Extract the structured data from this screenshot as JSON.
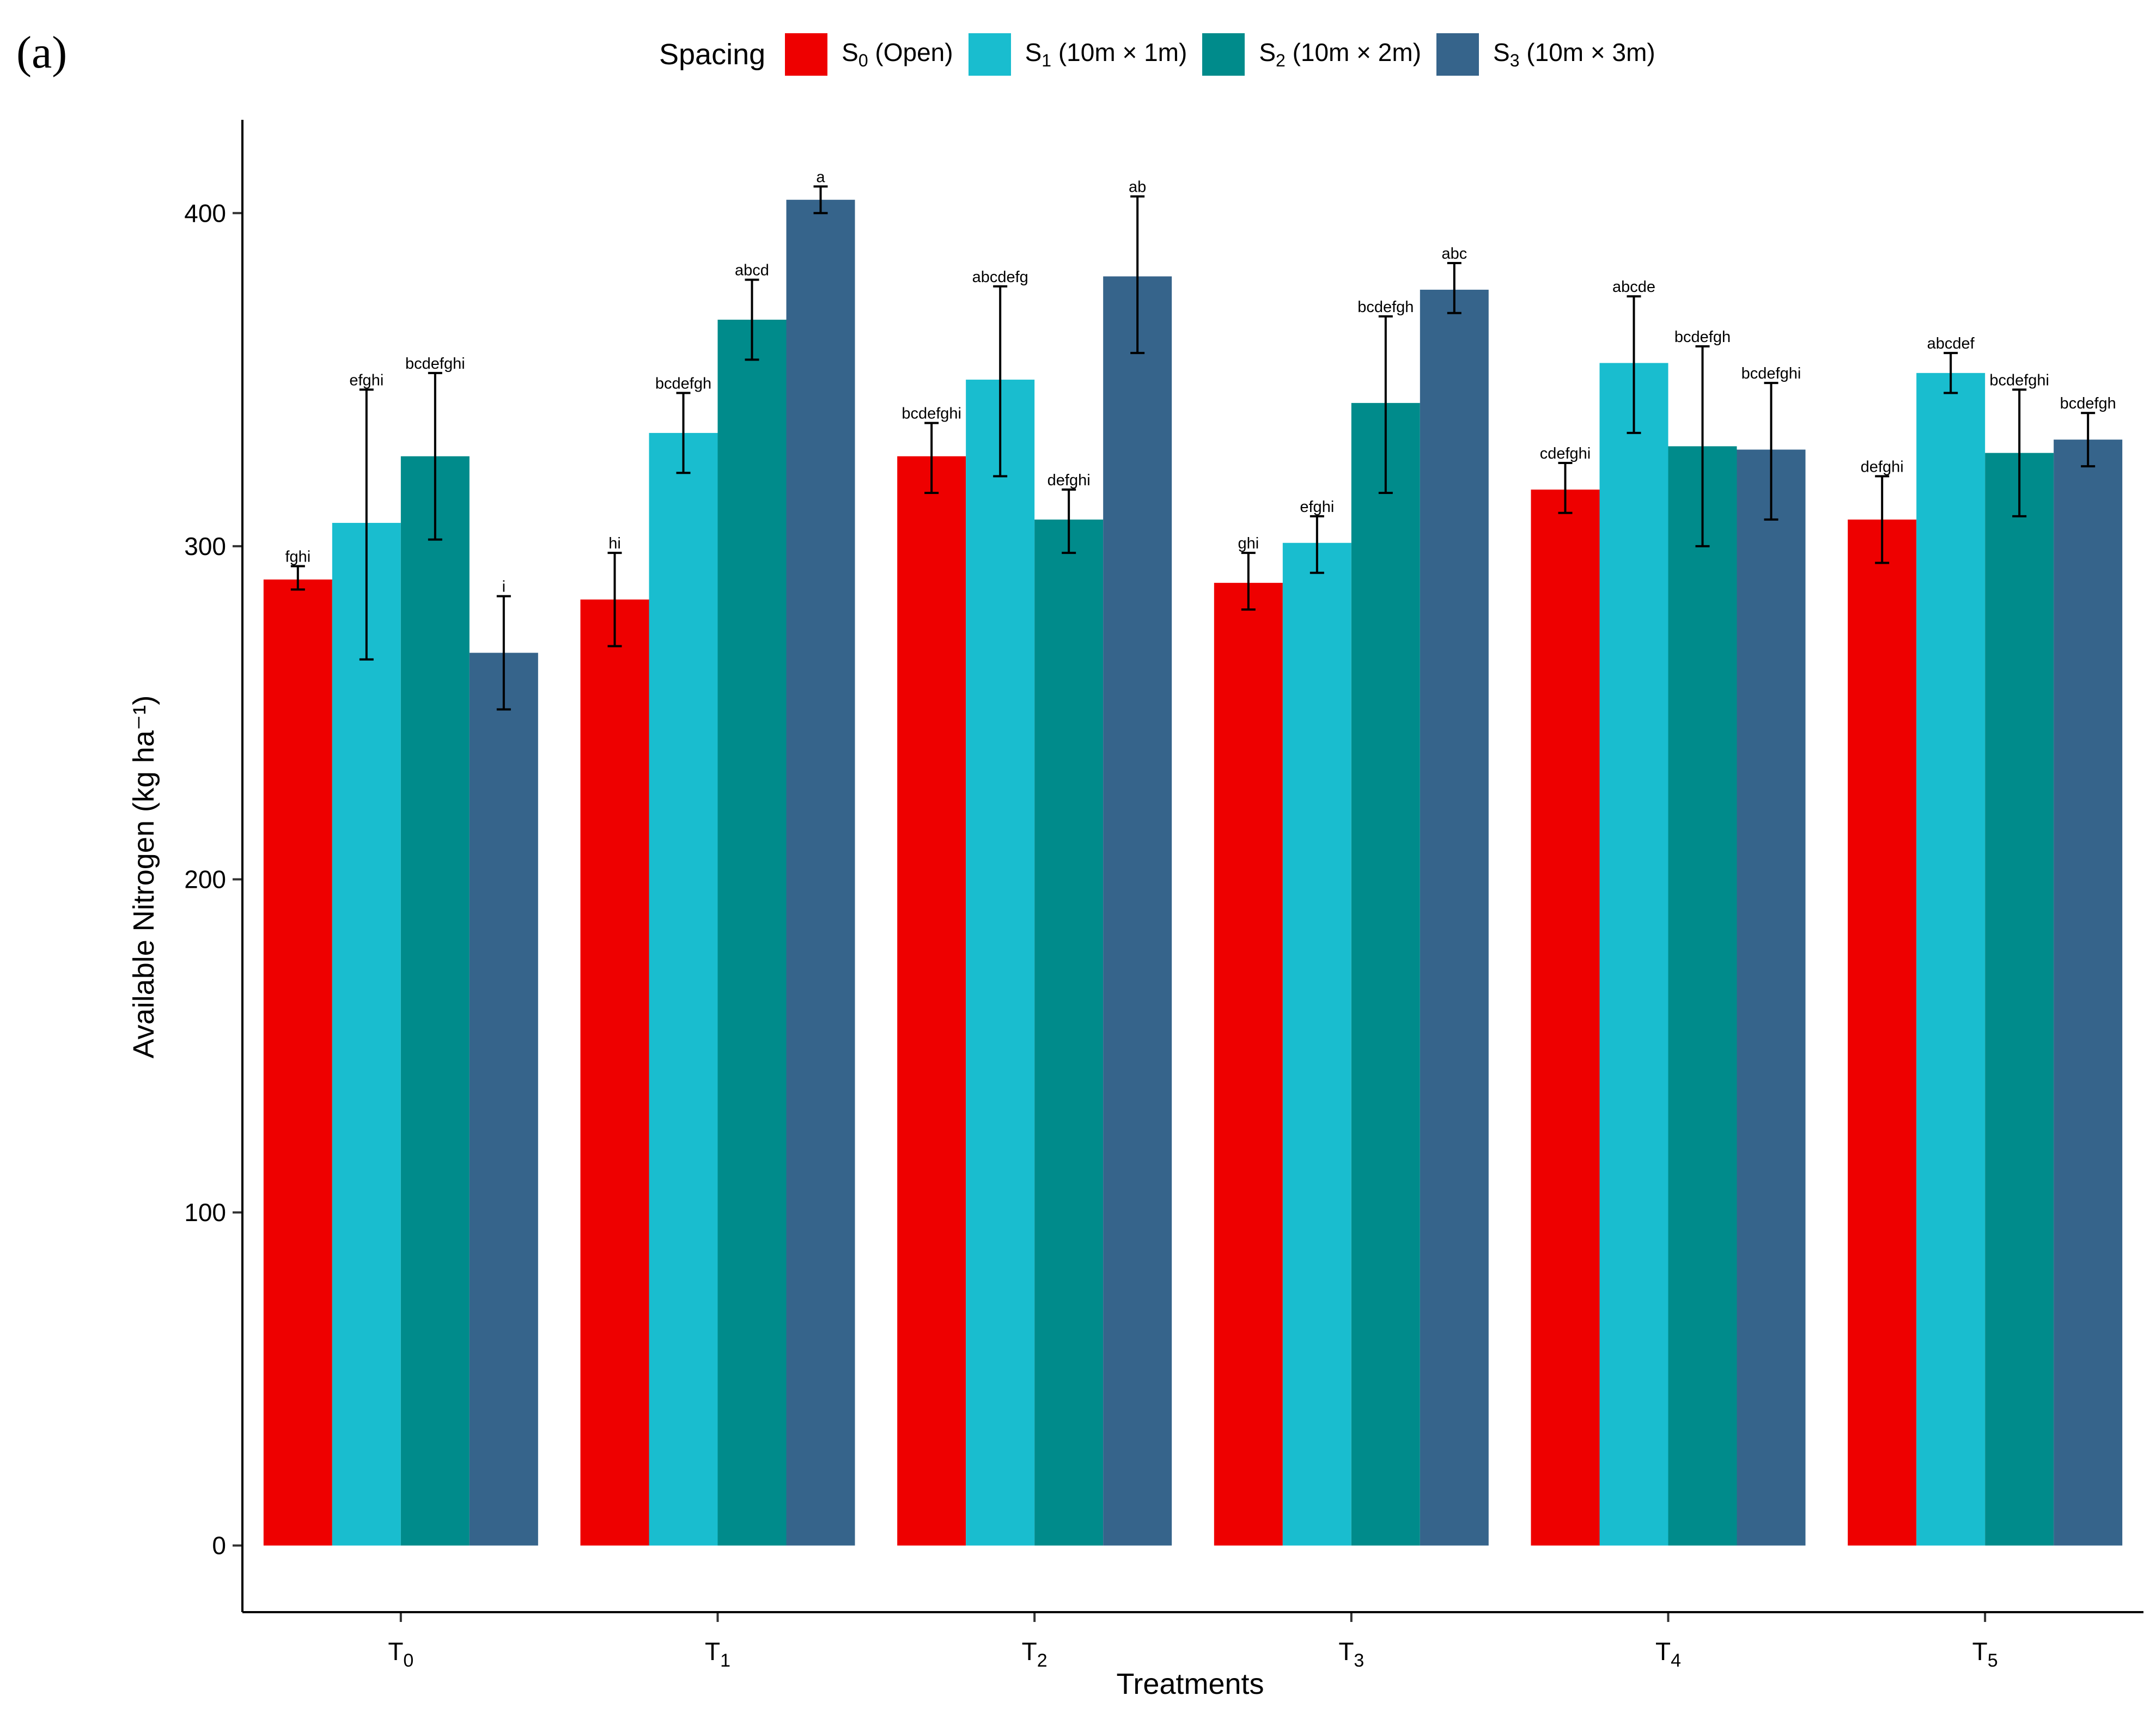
{
  "panel_label": "(a)",
  "chart_data": {
    "type": "bar",
    "title": "",
    "xlabel": "Treatments",
    "ylabel": "Available Nitrogen (kg ha⁻¹)",
    "ylim": [
      -20,
      428
    ],
    "yticks": [
      0,
      100,
      200,
      300,
      400
    ],
    "categories": [
      {
        "base": "T",
        "sub": "0"
      },
      {
        "base": "T",
        "sub": "1"
      },
      {
        "base": "T",
        "sub": "2"
      },
      {
        "base": "T",
        "sub": "3"
      },
      {
        "base": "T",
        "sub": "4"
      },
      {
        "base": "T",
        "sub": "5"
      }
    ],
    "legend": {
      "title": "Spacing",
      "position": "top"
    },
    "series": [
      {
        "name": "S0 (Open)",
        "label_base": "S",
        "label_sub": "0",
        "label_rest": " (Open)",
        "color": "#EE0000",
        "values": [
          290,
          284,
          327,
          289,
          317,
          308
        ],
        "err_low": [
          287,
          270,
          316,
          281,
          310,
          295
        ],
        "err_high": [
          294,
          298,
          337,
          298,
          325,
          321
        ],
        "letters": [
          "fghi",
          "hi",
          "bcdefghi",
          "ghi",
          "cdefghi",
          "defghi"
        ]
      },
      {
        "name": "S1 (10m × 1m)",
        "label_base": "S",
        "label_sub": "1",
        "label_rest": " (10m × 1m)",
        "color": "#19BDCF",
        "values": [
          307,
          334,
          350,
          301,
          355,
          352
        ],
        "err_low": [
          266,
          322,
          321,
          292,
          334,
          346
        ],
        "err_high": [
          347,
          346,
          378,
          309,
          375,
          358
        ],
        "letters": [
          "efghi",
          "bcdefgh",
          "abcdefg",
          "efghi",
          "abcde",
          "abcdef"
        ]
      },
      {
        "name": "S2 (10m × 2m)",
        "label_base": "S",
        "label_sub": "2",
        "label_rest": " (10m × 2m)",
        "color": "#008B8B",
        "values": [
          327,
          368,
          308,
          343,
          330,
          328
        ],
        "err_low": [
          302,
          356,
          298,
          316,
          300,
          309
        ],
        "err_high": [
          352,
          380,
          317,
          369,
          360,
          347
        ],
        "letters": [
          "bcdefghi",
          "abcd",
          "defghi",
          "bcdefgh",
          "bcdefgh",
          "bcdefghi"
        ]
      },
      {
        "name": "S3 (10m × 3m)",
        "label_base": "S",
        "label_sub": "3",
        "label_rest": " (10m × 3m)",
        "color": "#36648B",
        "values": [
          268,
          404,
          381,
          377,
          329,
          332
        ],
        "err_low": [
          251,
          400,
          358,
          370,
          308,
          324
        ],
        "err_high": [
          285,
          408,
          405,
          385,
          349,
          340
        ],
        "letters": [
          "i",
          "a",
          "ab",
          "abc",
          "bcdefghi",
          "bcdefgh"
        ]
      }
    ]
  }
}
